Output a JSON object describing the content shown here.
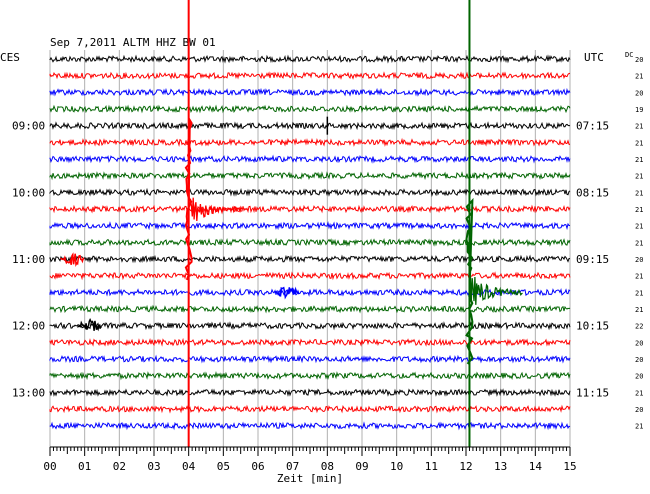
{
  "chart_data": {
    "type": "line",
    "title": "Sep 7,2011   ALTM HHZ BW 01",
    "xlabel": "Zeit [min]",
    "left_zone": "CES",
    "right_zone": "UTC",
    "dc_label": "DC",
    "x_ticks": [
      "00",
      "01",
      "02",
      "03",
      "04",
      "05",
      "06",
      "07",
      "08",
      "09",
      "10",
      "11",
      "12",
      "13",
      "14",
      "15"
    ],
    "xlim": [
      0,
      15
    ],
    "left_time_labels": [
      {
        "row": 4,
        "label": "09:00"
      },
      {
        "row": 8,
        "label": "10:00"
      },
      {
        "row": 12,
        "label": "11:00"
      },
      {
        "row": 16,
        "label": "12:00"
      },
      {
        "row": 20,
        "label": "13:00"
      }
    ],
    "right_time_labels": [
      {
        "row": 4,
        "label": "07:15"
      },
      {
        "row": 8,
        "label": "08:15"
      },
      {
        "row": 12,
        "label": "09:15"
      },
      {
        "row": 16,
        "label": "10:15"
      },
      {
        "row": 20,
        "label": "11:15"
      }
    ],
    "dc_values": [
      "20",
      "21",
      "20",
      "19",
      "21",
      "21",
      "21",
      "21",
      "21",
      "21",
      "21",
      "21",
      "20",
      "21",
      "21",
      "21",
      "22",
      "20",
      "20",
      "20",
      "21",
      "20",
      "21"
    ],
    "colors": [
      "#000000",
      "#ff0000",
      "#0000ff",
      "#006400"
    ],
    "events": [
      {
        "row": 9,
        "minute": 4.0,
        "color": "#ff0000",
        "type": "quake"
      },
      {
        "row": 14,
        "minute": 12.1,
        "color": "#006400",
        "type": "quake"
      },
      {
        "row": 12,
        "minute": 0.6,
        "color": "#ff0000",
        "type": "burst"
      },
      {
        "row": 14,
        "minute": 6.8,
        "color": "#0000ff",
        "type": "burst"
      },
      {
        "row": 16,
        "minute": 1.1,
        "color": "#000000",
        "type": "burst"
      },
      {
        "row": 4,
        "minute": 8.0,
        "color": "#000000",
        "type": "spike"
      }
    ],
    "grid": true
  }
}
